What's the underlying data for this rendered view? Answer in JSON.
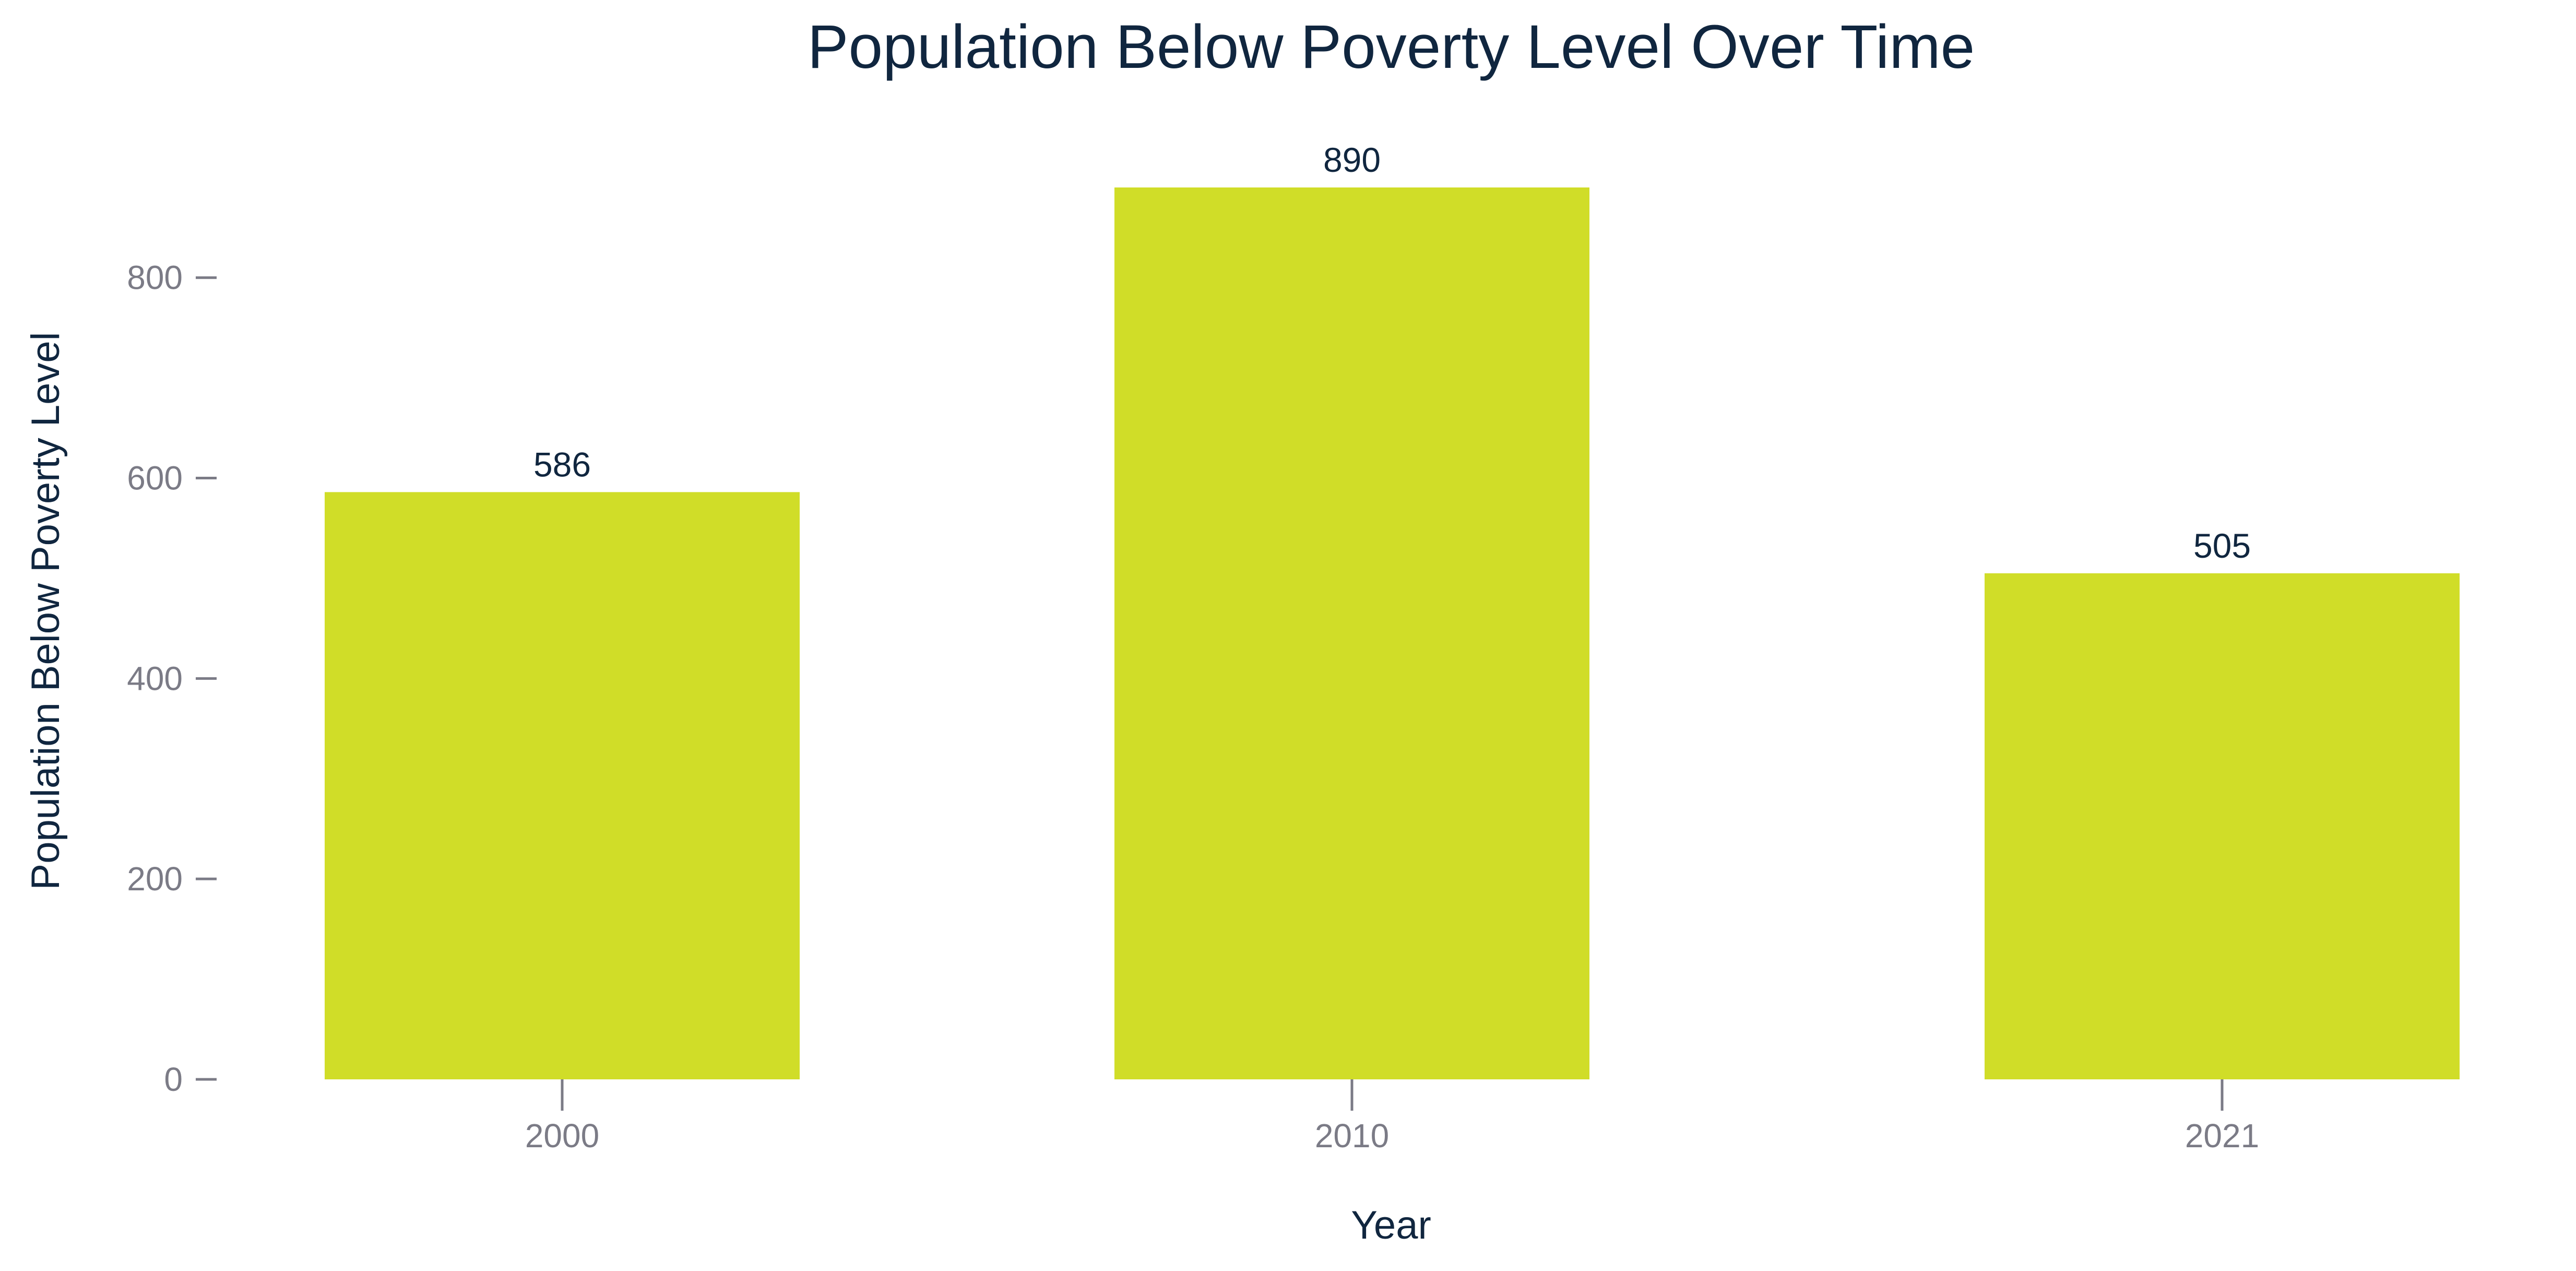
{
  "chart_data": {
    "type": "bar",
    "title": "Population Below Poverty Level Over Time",
    "xlabel": "Year",
    "ylabel": "Population Below Poverty Level",
    "categories": [
      "2000",
      "2010",
      "2021"
    ],
    "values": [
      586,
      890,
      505
    ],
    "data_labels": [
      "586",
      "890",
      "505"
    ],
    "ylim": [
      0,
      890
    ],
    "yticks": [
      0,
      200,
      400,
      600,
      800
    ],
    "ytick_labels": [
      "0",
      "200",
      "400",
      "600",
      "800"
    ],
    "grid": false,
    "legend": "none",
    "colors": {
      "bar": "#d0dd28",
      "title": "#10263f",
      "axis_label": "#10263f",
      "tick_label": "#7b7b86",
      "data_label": "#10263f"
    }
  }
}
